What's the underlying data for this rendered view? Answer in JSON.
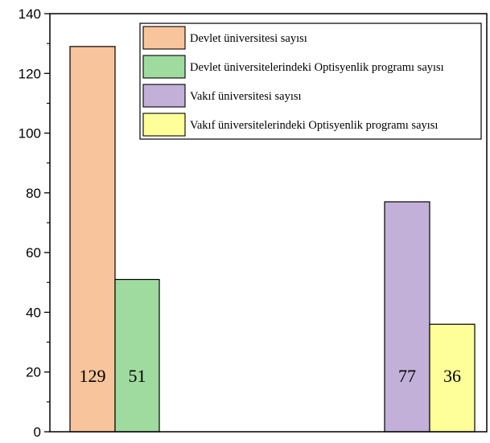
{
  "chart_data": {
    "type": "bar",
    "series": [
      {
        "name": "Devlet üniversitesi sayısı",
        "value": 129,
        "color": "#F8C49C"
      },
      {
        "name": "Devlet üniversitelerindeki Optisyenlik programı sayısı",
        "value": 51,
        "color": "#9FDB9F"
      },
      {
        "name": "Vakıf üniversitesi sayısı",
        "value": 77,
        "color": "#C2B0D9"
      },
      {
        "name": "Vakıf üniversitelerindeki Optisyenlik programı sayısı",
        "value": 36,
        "color": "#FFFF99"
      }
    ],
    "data_labels": [
      "129",
      "51",
      "77",
      "36"
    ],
    "yticks": [
      0,
      20,
      40,
      60,
      80,
      100,
      120,
      140
    ],
    "ylim": [
      0,
      140
    ],
    "legend_position": "top-right",
    "grid": false
  }
}
